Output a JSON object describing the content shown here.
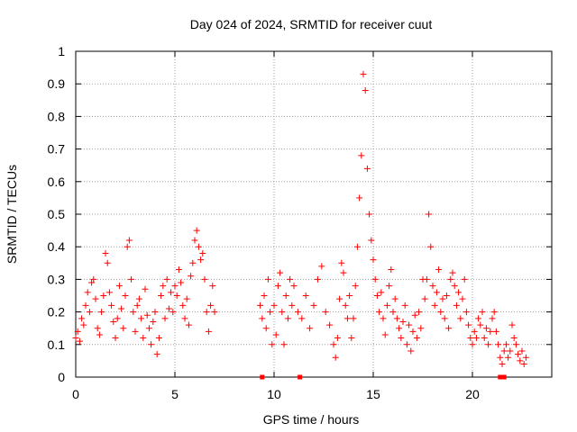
{
  "chart_data": {
    "type": "scatter",
    "title": "Day 024 of 2024, SRMTID for receiver cuut",
    "xlabel": "GPS time / hours",
    "ylabel": "SRMTID / TECUs",
    "xlim": [
      0,
      24
    ],
    "ylim": [
      0,
      1
    ],
    "xticks": [
      0,
      5,
      10,
      15,
      20
    ],
    "yticks": [
      0,
      0.1,
      0.2,
      0.3,
      0.4,
      0.5,
      0.6,
      0.7,
      0.8,
      0.9,
      1
    ],
    "xtick_labels": [
      "0",
      "5",
      "10",
      "15",
      "20"
    ],
    "ytick_labels": [
      "0",
      "0.1",
      "0.2",
      "0.3",
      "0.4",
      "0.5",
      "0.6",
      "0.7",
      "0.8",
      "0.9",
      "1"
    ],
    "grid": true,
    "marker": "plus",
    "color": "#ff0000",
    "series": [
      {
        "name": "SRMTID",
        "points": [
          [
            0.0,
            0.12
          ],
          [
            0.1,
            0.14
          ],
          [
            0.2,
            0.11
          ],
          [
            0.3,
            0.18
          ],
          [
            0.4,
            0.16
          ],
          [
            0.5,
            0.22
          ],
          [
            0.6,
            0.26
          ],
          [
            0.7,
            0.2
          ],
          [
            0.8,
            0.29
          ],
          [
            0.9,
            0.3
          ],
          [
            1.0,
            0.24
          ],
          [
            1.1,
            0.15
          ],
          [
            1.2,
            0.13
          ],
          [
            1.3,
            0.2
          ],
          [
            1.4,
            0.25
          ],
          [
            1.5,
            0.38
          ],
          [
            1.6,
            0.35
          ],
          [
            1.7,
            0.26
          ],
          [
            1.8,
            0.22
          ],
          [
            1.9,
            0.17
          ],
          [
            2.0,
            0.12
          ],
          [
            2.1,
            0.18
          ],
          [
            2.2,
            0.28
          ],
          [
            2.3,
            0.21
          ],
          [
            2.4,
            0.15
          ],
          [
            2.5,
            0.25
          ],
          [
            2.6,
            0.4
          ],
          [
            2.7,
            0.42
          ],
          [
            2.8,
            0.3
          ],
          [
            2.9,
            0.2
          ],
          [
            3.0,
            0.14
          ],
          [
            3.1,
            0.22
          ],
          [
            3.2,
            0.24
          ],
          [
            3.3,
            0.18
          ],
          [
            3.4,
            0.12
          ],
          [
            3.5,
            0.27
          ],
          [
            3.6,
            0.19
          ],
          [
            3.7,
            0.15
          ],
          [
            3.8,
            0.1
          ],
          [
            3.9,
            0.17
          ],
          [
            4.0,
            0.2
          ],
          [
            4.1,
            0.07
          ],
          [
            4.2,
            0.12
          ],
          [
            4.3,
            0.25
          ],
          [
            4.4,
            0.28
          ],
          [
            4.5,
            0.18
          ],
          [
            4.6,
            0.3
          ],
          [
            4.7,
            0.21
          ],
          [
            4.8,
            0.26
          ],
          [
            4.9,
            0.2
          ],
          [
            5.0,
            0.28
          ],
          [
            5.1,
            0.25
          ],
          [
            5.2,
            0.33
          ],
          [
            5.3,
            0.29
          ],
          [
            5.4,
            0.22
          ],
          [
            5.5,
            0.18
          ],
          [
            5.6,
            0.24
          ],
          [
            5.7,
            0.16
          ],
          [
            5.8,
            0.31
          ],
          [
            5.9,
            0.35
          ],
          [
            6.0,
            0.42
          ],
          [
            6.1,
            0.45
          ],
          [
            6.2,
            0.4
          ],
          [
            6.3,
            0.36
          ],
          [
            6.4,
            0.38
          ],
          [
            6.5,
            0.3
          ],
          [
            6.6,
            0.2
          ],
          [
            6.7,
            0.14
          ],
          [
            6.8,
            0.22
          ],
          [
            6.9,
            0.28
          ],
          [
            7.0,
            0.2
          ],
          [
            9.3,
            0.22
          ],
          [
            9.4,
            0.18
          ],
          [
            9.5,
            0.25
          ],
          [
            9.6,
            0.15
          ],
          [
            9.7,
            0.3
          ],
          [
            9.8,
            0.2
          ],
          [
            9.9,
            0.1
          ],
          [
            10.0,
            0.22
          ],
          [
            10.1,
            0.13
          ],
          [
            10.2,
            0.28
          ],
          [
            10.3,
            0.32
          ],
          [
            10.4,
            0.2
          ],
          [
            10.5,
            0.1
          ],
          [
            10.6,
            0.25
          ],
          [
            10.7,
            0.18
          ],
          [
            10.8,
            0.3
          ],
          [
            10.9,
            0.22
          ],
          [
            11.0,
            0.28
          ],
          [
            11.2,
            0.2
          ],
          [
            11.4,
            0.18
          ],
          [
            11.6,
            0.25
          ],
          [
            11.8,
            0.15
          ],
          [
            12.0,
            0.22
          ],
          [
            12.2,
            0.3
          ],
          [
            12.4,
            0.34
          ],
          [
            12.6,
            0.2
          ],
          [
            12.8,
            0.16
          ],
          [
            13.0,
            0.1
          ],
          [
            13.1,
            0.06
          ],
          [
            13.2,
            0.12
          ],
          [
            13.3,
            0.24
          ],
          [
            13.4,
            0.35
          ],
          [
            13.5,
            0.32
          ],
          [
            13.6,
            0.22
          ],
          [
            13.7,
            0.18
          ],
          [
            13.8,
            0.25
          ],
          [
            13.9,
            0.12
          ],
          [
            14.0,
            0.18
          ],
          [
            14.1,
            0.28
          ],
          [
            14.2,
            0.4
          ],
          [
            14.3,
            0.55
          ],
          [
            14.4,
            0.68
          ],
          [
            14.5,
            0.93
          ],
          [
            14.6,
            0.88
          ],
          [
            14.7,
            0.64
          ],
          [
            14.8,
            0.5
          ],
          [
            14.9,
            0.42
          ],
          [
            15.0,
            0.36
          ],
          [
            15.1,
            0.3
          ],
          [
            15.2,
            0.25
          ],
          [
            15.3,
            0.2
          ],
          [
            15.4,
            0.26
          ],
          [
            15.5,
            0.18
          ],
          [
            15.6,
            0.13
          ],
          [
            15.7,
            0.22
          ],
          [
            15.8,
            0.28
          ],
          [
            15.9,
            0.33
          ],
          [
            16.0,
            0.2
          ],
          [
            16.1,
            0.24
          ],
          [
            16.2,
            0.18
          ],
          [
            16.3,
            0.15
          ],
          [
            16.4,
            0.12
          ],
          [
            16.5,
            0.17
          ],
          [
            16.6,
            0.22
          ],
          [
            16.7,
            0.1
          ],
          [
            16.8,
            0.16
          ],
          [
            16.9,
            0.08
          ],
          [
            17.0,
            0.14
          ],
          [
            17.1,
            0.19
          ],
          [
            17.2,
            0.12
          ],
          [
            17.3,
            0.2
          ],
          [
            17.4,
            0.15
          ],
          [
            17.5,
            0.3
          ],
          [
            17.6,
            0.24
          ],
          [
            17.7,
            0.3
          ],
          [
            17.8,
            0.5
          ],
          [
            17.9,
            0.4
          ],
          [
            18.0,
            0.28
          ],
          [
            18.1,
            0.22
          ],
          [
            18.2,
            0.26
          ],
          [
            18.3,
            0.33
          ],
          [
            18.4,
            0.2
          ],
          [
            18.5,
            0.24
          ],
          [
            18.6,
            0.18
          ],
          [
            18.7,
            0.25
          ],
          [
            18.8,
            0.15
          ],
          [
            18.9,
            0.3
          ],
          [
            19.0,
            0.32
          ],
          [
            19.1,
            0.28
          ],
          [
            19.2,
            0.22
          ],
          [
            19.3,
            0.26
          ],
          [
            19.4,
            0.18
          ],
          [
            19.5,
            0.24
          ],
          [
            19.6,
            0.3
          ],
          [
            19.7,
            0.2
          ],
          [
            19.8,
            0.16
          ],
          [
            19.9,
            0.12
          ],
          [
            20.0,
            0.1
          ],
          [
            20.1,
            0.14
          ],
          [
            20.2,
            0.12
          ],
          [
            20.3,
            0.18
          ],
          [
            20.4,
            0.16
          ],
          [
            20.5,
            0.2
          ],
          [
            20.6,
            0.12
          ],
          [
            20.7,
            0.15
          ],
          [
            20.8,
            0.1
          ],
          [
            20.9,
            0.14
          ],
          [
            21.0,
            0.18
          ],
          [
            21.1,
            0.2
          ],
          [
            21.2,
            0.14
          ],
          [
            21.3,
            0.1
          ],
          [
            21.4,
            0.06
          ],
          [
            21.5,
            0.04
          ],
          [
            21.6,
            0.08
          ],
          [
            21.7,
            0.1
          ],
          [
            21.8,
            0.06
          ],
          [
            21.9,
            0.08
          ],
          [
            22.0,
            0.16
          ],
          [
            22.1,
            0.12
          ],
          [
            22.2,
            0.1
          ],
          [
            22.3,
            0.07
          ],
          [
            22.4,
            0.05
          ],
          [
            22.5,
            0.08
          ],
          [
            22.6,
            0.04
          ],
          [
            22.7,
            0.06
          ]
        ]
      }
    ],
    "zero_markers": [
      9.4,
      11.3,
      21.4,
      21.5,
      21.6
    ]
  }
}
